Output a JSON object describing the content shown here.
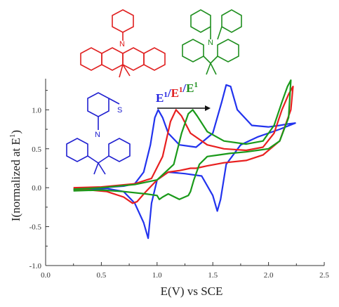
{
  "chart_data": {
    "type": "line",
    "title": "",
    "xlabel": "E(V) vs SCE",
    "ylabel": "I(normalized at E",
    "ylabel_sup": "1",
    "ylabel_close": ")",
    "xlim": [
      0.0,
      2.5
    ],
    "ylim": [
      -1.0,
      1.4
    ],
    "xticks": [
      0.0,
      0.5,
      1.0,
      1.5,
      2.0,
      2.5
    ],
    "xtick_labels": [
      "0.0",
      "0.5",
      "1.0",
      "1.5",
      "2.0",
      "2.5"
    ],
    "yticks": [
      -1.0,
      -0.5,
      0.0,
      0.5,
      1.0
    ],
    "ytick_labels": [
      "-1.0",
      "-0.5",
      "0.0",
      "0.5",
      "1.0"
    ],
    "grid": false,
    "annotation": {
      "parts": [
        {
          "text": "E",
          "sup": "1",
          "color": "#2020e0"
        },
        {
          "text": "/",
          "color": "#2020e0"
        },
        {
          "text": "E",
          "sup": "1",
          "color": "#e02020"
        },
        {
          "text": "/",
          "color": "#2020e0"
        },
        {
          "text": "E",
          "sup": "1",
          "color": "#1f8f1f"
        }
      ]
    },
    "series": [
      {
        "color": "#2233ee",
        "x": [
          0.25,
          0.5,
          0.7,
          0.8,
          0.88,
          0.94,
          0.98,
          1.01,
          1.05,
          1.1,
          1.2,
          1.35,
          1.5,
          1.58,
          1.62,
          1.66,
          1.72,
          1.85,
          2.0,
          2.1,
          2.18,
          2.24,
          2.24,
          2.1,
          1.9,
          1.75,
          1.62,
          1.57,
          1.54,
          1.5,
          1.4,
          1.25,
          1.1,
          1.0,
          0.95,
          0.92,
          0.88,
          0.8,
          0.7,
          0.55,
          0.4,
          0.25
        ],
        "y": [
          -0.02,
          0.0,
          0.02,
          0.05,
          0.2,
          0.55,
          0.9,
          1.0,
          0.9,
          0.7,
          0.55,
          0.52,
          0.7,
          1.1,
          1.32,
          1.3,
          1.0,
          0.8,
          0.78,
          0.8,
          0.82,
          0.83,
          0.83,
          0.75,
          0.65,
          0.55,
          0.3,
          -0.15,
          -0.3,
          -0.1,
          0.15,
          0.18,
          0.2,
          0.1,
          -0.2,
          -0.65,
          -0.45,
          -0.2,
          -0.05,
          -0.01,
          -0.02,
          -0.03
        ]
      },
      {
        "color": "#e82020",
        "x": [
          0.25,
          0.5,
          0.8,
          0.95,
          1.05,
          1.12,
          1.17,
          1.22,
          1.3,
          1.45,
          1.6,
          1.8,
          1.95,
          2.05,
          2.12,
          2.18,
          2.22,
          2.2,
          2.1,
          1.95,
          1.8,
          1.6,
          1.45,
          1.35,
          1.3,
          1.2,
          1.1,
          1.0,
          0.9,
          0.82,
          0.78,
          0.7,
          0.55,
          0.4,
          0.25
        ],
        "y": [
          0.0,
          0.01,
          0.05,
          0.12,
          0.4,
          0.85,
          1.0,
          0.92,
          0.7,
          0.55,
          0.5,
          0.48,
          0.52,
          0.7,
          1.0,
          1.2,
          1.3,
          1.0,
          0.6,
          0.42,
          0.35,
          0.32,
          0.28,
          0.25,
          0.25,
          0.22,
          0.2,
          0.1,
          -0.05,
          -0.18,
          -0.2,
          -0.12,
          -0.05,
          -0.03,
          -0.02
        ]
      },
      {
        "color": "#1a9a1a",
        "x": [
          0.25,
          0.5,
          0.8,
          1.0,
          1.15,
          1.22,
          1.28,
          1.32,
          1.36,
          1.45,
          1.6,
          1.8,
          1.95,
          2.05,
          2.12,
          2.17,
          2.2,
          2.18,
          2.1,
          2.0,
          1.9,
          1.8,
          1.65,
          1.55,
          1.45,
          1.38,
          1.33,
          1.3,
          1.28,
          1.2,
          1.1,
          1.05,
          1.02,
          1.0,
          0.9,
          0.7,
          0.5,
          0.25
        ],
        "y": [
          -0.02,
          0.0,
          0.04,
          0.1,
          0.3,
          0.7,
          0.95,
          1.0,
          0.92,
          0.72,
          0.6,
          0.56,
          0.6,
          0.8,
          1.1,
          1.3,
          1.38,
          0.9,
          0.6,
          0.5,
          0.48,
          0.46,
          0.44,
          0.42,
          0.4,
          0.3,
          0.1,
          -0.05,
          -0.1,
          -0.15,
          -0.08,
          -0.12,
          -0.15,
          -0.1,
          -0.08,
          -0.05,
          -0.03,
          -0.04
        ]
      }
    ]
  },
  "structures": [
    {
      "name": "n-phenyl-acridane",
      "color": "#e02020"
    },
    {
      "name": "carbazole-fused-acridane",
      "color": "#1f8f1f"
    },
    {
      "name": "phenothiazine-fused-acridane",
      "color": "#2020d0",
      "heteroatom_labels": [
        "S",
        "N"
      ]
    }
  ]
}
